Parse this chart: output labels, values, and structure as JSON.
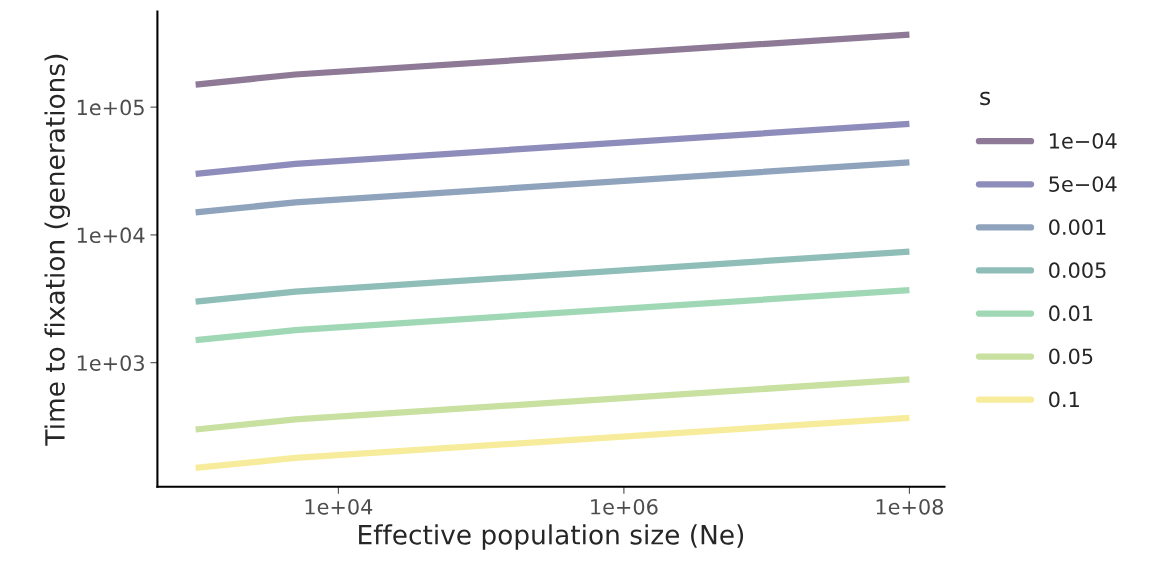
{
  "chart_data": {
    "type": "line",
    "xlabel": "Effective population size (Ne)",
    "ylabel": "Time to fixation (generations)",
    "legend_title": "s",
    "log": "xy",
    "grid": false,
    "legend": "right",
    "line_style": "solid",
    "marker": "none",
    "x": [
      1000,
      5000,
      100000000
    ],
    "xlim": [
      540,
      176000000
    ],
    "ylim": [
      107,
      560000
    ],
    "xticks": [
      {
        "value": 10000,
        "label": "1e+04"
      },
      {
        "value": 1000000,
        "label": "1e+06"
      },
      {
        "value": 100000000,
        "label": "1e+08"
      }
    ],
    "yticks": [
      {
        "value": 1000,
        "label": "1e+03"
      },
      {
        "value": 10000,
        "label": "1e+04"
      },
      {
        "value": 100000,
        "label": "1e+05"
      }
    ],
    "series": [
      {
        "name": "1e−04",
        "color": "#8e7a96",
        "values": [
          150000,
          180000,
          370000
        ]
      },
      {
        "name": "5e−04",
        "color": "#8e8cba",
        "values": [
          30000,
          36000,
          74000
        ]
      },
      {
        "name": "0.001",
        "color": "#8fa3bc",
        "values": [
          15000,
          18000,
          37000
        ]
      },
      {
        "name": "0.005",
        "color": "#8fbdb8",
        "values": [
          3000,
          3600,
          7400
        ]
      },
      {
        "name": "0.01",
        "color": "#a0d8b5",
        "values": [
          1500,
          1800,
          3700
        ]
      },
      {
        "name": "0.05",
        "color": "#c8e0a0",
        "values": [
          300,
          360,
          740
        ]
      },
      {
        "name": "0.1",
        "color": "#f7ec9c",
        "values": [
          150,
          180,
          370
        ]
      }
    ]
  }
}
